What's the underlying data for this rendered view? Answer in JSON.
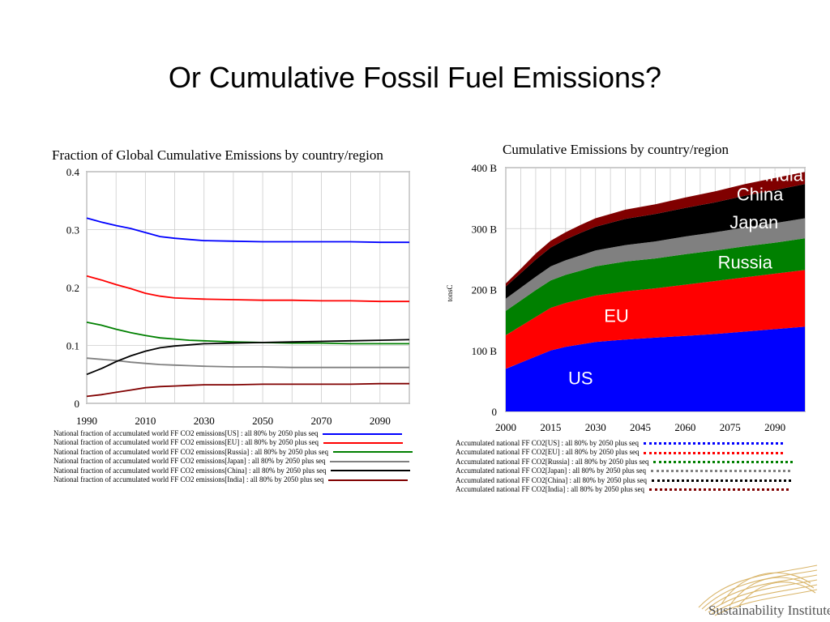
{
  "slide": {
    "title": "Or Cumulative Fossil Fuel Emissions?",
    "logo_text": "Sustainability Institute"
  },
  "chart_data": [
    {
      "type": "line",
      "title": "Fraction of Global Cumulative Emissions by country/region",
      "xlabel": "",
      "ylabel": "",
      "xlim": [
        1990,
        2100
      ],
      "ylim": [
        0,
        0.4
      ],
      "xticks": [
        1990,
        2010,
        2030,
        2050,
        2070,
        2090
      ],
      "yticks": [
        0,
        0.1,
        0.2,
        0.3,
        0.4
      ],
      "ytick_labels": [
        "0",
        "0.1",
        "0.2",
        "0.3",
        "0.4"
      ],
      "grid": true,
      "legend_position": "bottom",
      "x": [
        1990,
        1995,
        2000,
        2005,
        2010,
        2015,
        2020,
        2025,
        2030,
        2040,
        2050,
        2060,
        2070,
        2080,
        2090,
        2100
      ],
      "series": [
        {
          "name": "National fraction of accumulated world FF CO2 emissions[US] : all 80% by 2050 plus seq",
          "color": "#0000ff",
          "values": [
            0.32,
            0.313,
            0.307,
            0.302,
            0.295,
            0.288,
            0.285,
            0.283,
            0.281,
            0.28,
            0.279,
            0.279,
            0.279,
            0.279,
            0.278,
            0.278
          ]
        },
        {
          "name": "National fraction of accumulated world FF CO2 emissions[EU] : all 80% by 2050 plus seq",
          "color": "#ff0000",
          "values": [
            0.22,
            0.213,
            0.205,
            0.198,
            0.19,
            0.185,
            0.182,
            0.181,
            0.18,
            0.179,
            0.178,
            0.178,
            0.177,
            0.177,
            0.176,
            0.176
          ]
        },
        {
          "name": "National fraction of accumulated world FF CO2 emissions[Russia] : all 80% by 2050 plus seq",
          "color": "#008000",
          "values": [
            0.14,
            0.135,
            0.128,
            0.122,
            0.117,
            0.113,
            0.111,
            0.109,
            0.108,
            0.106,
            0.105,
            0.104,
            0.104,
            0.103,
            0.103,
            0.103
          ]
        },
        {
          "name": "National fraction of accumulated world FF CO2 emissions[Japan] : all 80% by 2050 plus seq",
          "color": "#808080",
          "values": [
            0.078,
            0.076,
            0.074,
            0.071,
            0.069,
            0.067,
            0.066,
            0.065,
            0.064,
            0.063,
            0.063,
            0.062,
            0.062,
            0.062,
            0.062,
            0.062
          ]
        },
        {
          "name": "National fraction of accumulated world FF CO2 emissions[China] : all 80% by 2050 plus seq",
          "color": "#000000",
          "values": [
            0.05,
            0.06,
            0.072,
            0.082,
            0.09,
            0.096,
            0.099,
            0.101,
            0.103,
            0.104,
            0.105,
            0.106,
            0.107,
            0.108,
            0.109,
            0.11
          ]
        },
        {
          "name": "National fraction of accumulated world FF CO2 emissions[India] : all 80% by 2050 plus seq",
          "color": "#800000",
          "values": [
            0.012,
            0.015,
            0.019,
            0.023,
            0.027,
            0.029,
            0.03,
            0.031,
            0.032,
            0.032,
            0.033,
            0.033,
            0.033,
            0.033,
            0.034,
            0.034
          ]
        }
      ]
    },
    {
      "type": "area",
      "stacked": true,
      "title": "Cumulative Emissions by country/region",
      "xlabel": "",
      "ylabel": "tonsC",
      "xlim": [
        2000,
        2100
      ],
      "ylim": [
        0,
        400
      ],
      "xticks": [
        2000,
        2015,
        2030,
        2045,
        2060,
        2075,
        2090
      ],
      "yticks": [
        0,
        100,
        200,
        300,
        400
      ],
      "ytick_labels": [
        "0",
        "100 B",
        "200 B",
        "300 B",
        "400 B"
      ],
      "grid": true,
      "legend_position": "bottom",
      "x": [
        2000,
        2005,
        2010,
        2015,
        2020,
        2025,
        2030,
        2040,
        2050,
        2060,
        2070,
        2080,
        2090,
        2100
      ],
      "series": [
        {
          "name": "Accumulated national FF CO2[US] : all 80% by 2050 plus seq",
          "label": "US",
          "color": "#0000ff",
          "values": [
            70,
            80,
            90,
            100,
            106,
            110,
            114,
            118,
            121,
            124,
            127,
            131,
            135,
            139
          ]
        },
        {
          "name": "Accumulated national FF CO2[EU] : all 80% by 2050 plus seq",
          "label": "EU",
          "color": "#ff0000",
          "values": [
            55,
            60,
            65,
            70,
            72,
            74,
            76,
            79,
            81,
            84,
            87,
            89,
            91,
            93
          ]
        },
        {
          "name": "Accumulated national FF CO2[Russia] : all 80% by 2050 plus seq",
          "label": "Russia",
          "color": "#008000",
          "values": [
            40,
            42,
            44,
            45,
            46,
            47,
            48,
            49,
            49,
            50,
            50,
            51,
            51,
            52
          ]
        },
        {
          "name": "Accumulated national FF CO2[Japan] : all 80% by 2050 plus seq",
          "label": "Japan",
          "color": "#808080",
          "values": [
            20,
            21,
            22,
            23,
            24,
            25,
            26,
            27,
            28,
            29,
            30,
            31,
            32,
            33
          ]
        },
        {
          "name": "Accumulated national FF CO2[China] : all 80% by 2050 plus seq",
          "label": "China",
          "color": "#000000",
          "values": [
            20,
            24,
            28,
            31,
            34,
            37,
            39,
            43,
            45,
            47,
            49,
            52,
            54,
            56
          ]
        },
        {
          "name": "Accumulated national FF CO2[India] : all 80% by 2050 plus seq",
          "label": "India",
          "color": "#800000",
          "values": [
            5,
            7,
            10,
            11,
            12,
            13,
            14,
            15,
            16,
            17,
            18,
            19,
            20,
            20
          ]
        }
      ]
    }
  ]
}
